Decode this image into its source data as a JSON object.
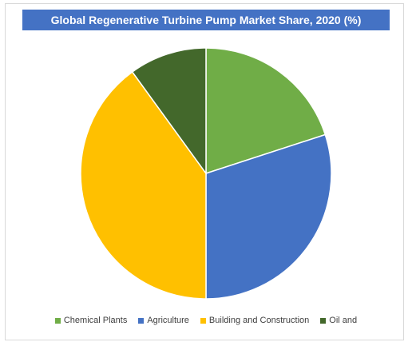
{
  "chart_data": {
    "type": "pie",
    "title": "Global Regenerative Turbine Pump Market Share, 2020 (%)",
    "start_angle_deg": 0,
    "direction": "clockwise",
    "legend_position": "bottom",
    "slices": [
      {
        "label": "Chemical Plants",
        "value": 20,
        "color": "#70ad47"
      },
      {
        "label": "Agriculture",
        "value": 30,
        "color": "#4472c4"
      },
      {
        "label": "Building and Construction",
        "value": 40,
        "color": "#ffc000"
      },
      {
        "label": "Oil and",
        "value": 10,
        "color": "#43682b"
      }
    ]
  }
}
